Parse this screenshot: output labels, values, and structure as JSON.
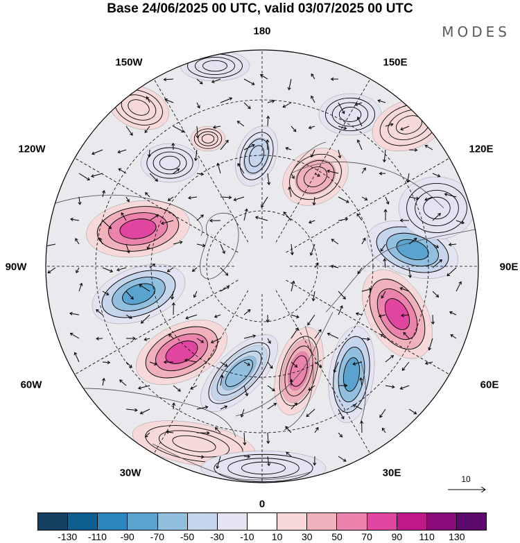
{
  "title": "Base 24/06/2025 00 UTC, valid 03/07/2025 00 UTC",
  "brand": "MODES",
  "longitude_labels": {
    "top": "180",
    "top_left": "150W",
    "top_right": "150E",
    "upper_left": "120W",
    "upper_right": "120E",
    "left": "90W",
    "right": "90E",
    "lower_left": "60W",
    "lower_right": "60E",
    "bottom_left": "30W",
    "bottom_right": "30E",
    "bottom": "0"
  },
  "reference_vector": {
    "label": "10"
  },
  "colorbar": {
    "colors": [
      "#12405f",
      "#0e5f8f",
      "#2a86bd",
      "#5aa3cf",
      "#93bfdf",
      "#c4d5ec",
      "#e3e3f1",
      "#ffffff",
      "#f8d9da",
      "#f1b1bb",
      "#ec83ad",
      "#e0469f",
      "#bf1889",
      "#8a0b7a",
      "#5c0a6e"
    ],
    "labels": [
      "-130",
      "-110",
      "-90",
      "-70",
      "-50",
      "-30",
      "-10",
      "10",
      "30",
      "50",
      "70",
      "90",
      "110",
      "130"
    ]
  },
  "map": {
    "projection": "north polar stereographic",
    "anomalies": [
      {
        "center": [
          199,
          330
        ],
        "rx": 75,
        "ry": 40,
        "rot": -8,
        "value": 90
      },
      {
        "center": [
          200,
          424
        ],
        "rx": 70,
        "ry": 38,
        "rot": -20,
        "value": -90
      },
      {
        "center": [
          262,
          508
        ],
        "rx": 70,
        "ry": 40,
        "rot": -25,
        "value": 90
      },
      {
        "center": [
          345,
          538
        ],
        "rx": 72,
        "ry": 32,
        "rot": -45,
        "value": -70
      },
      {
        "center": [
          431,
          535
        ],
        "rx": 65,
        "ry": 32,
        "rot": -75,
        "value": 70
      },
      {
        "center": [
          507,
          540
        ],
        "rx": 70,
        "ry": 32,
        "rot": -82,
        "value": -90
      },
      {
        "center": [
          573,
          453
        ],
        "rx": 70,
        "ry": 42,
        "rot": 60,
        "value": 90
      },
      {
        "center": [
          595,
          360
        ],
        "rx": 68,
        "ry": 38,
        "rot": 18,
        "value": -90
      },
      {
        "center": [
          455,
          255
        ],
        "rx": 50,
        "ry": 38,
        "rot": -30,
        "value": 50
      },
      {
        "center": [
          370,
          225
        ],
        "rx": 45,
        "ry": 28,
        "rot": -70,
        "value": -50
      },
      {
        "center": [
          245,
          235
        ],
        "rx": 42,
        "ry": 28,
        "rot": 0,
        "value": -30
      },
      {
        "center": [
          200,
          155
        ],
        "rx": 45,
        "ry": 30,
        "rot": 20,
        "value": 30
      },
      {
        "center": [
          505,
          165
        ],
        "rx": 45,
        "ry": 30,
        "rot": 0,
        "value": -30
      },
      {
        "center": [
          590,
          180
        ],
        "rx": 55,
        "ry": 35,
        "rot": -20,
        "value": 30
      },
      {
        "center": [
          310,
          95
        ],
        "rx": 50,
        "ry": 22,
        "rot": 0,
        "value": -30
      },
      {
        "center": [
          630,
          300
        ],
        "rx": 55,
        "ry": 45,
        "rot": 0,
        "value": -30
      },
      {
        "center": [
          280,
          640
        ],
        "rx": 90,
        "ry": 30,
        "rot": 10,
        "value": 30
      },
      {
        "center": [
          380,
          675
        ],
        "rx": 90,
        "ry": 25,
        "rot": 0,
        "value": -30
      },
      {
        "center": [
          300,
          200
        ],
        "rx": 25,
        "ry": 18,
        "rot": 0,
        "value": 30
      }
    ]
  }
}
